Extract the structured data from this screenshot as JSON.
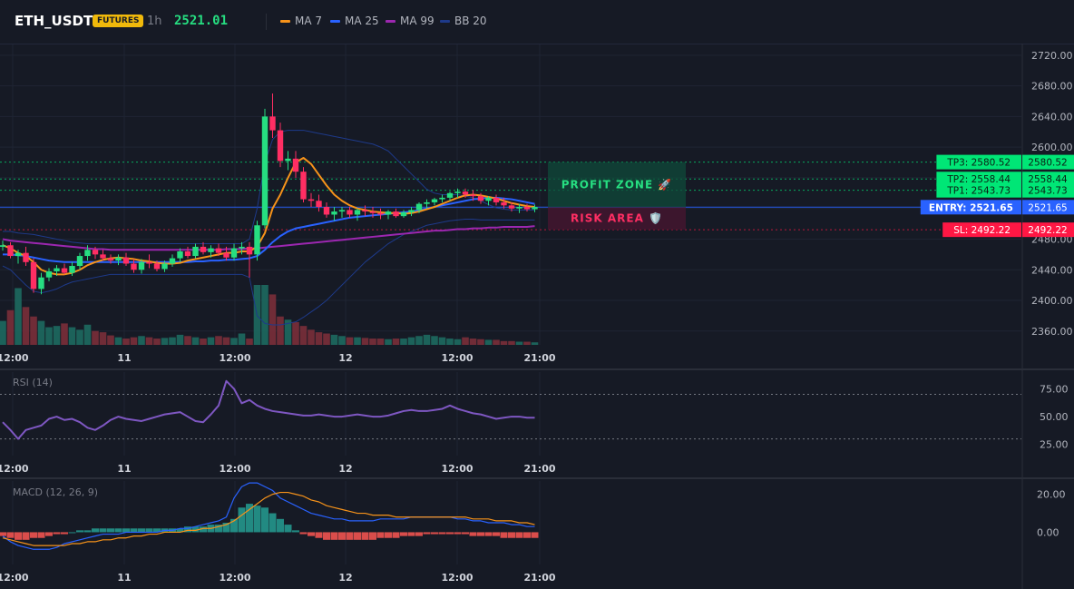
{
  "header": {
    "symbol": "ETH_USDT",
    "badge": "FUTURES",
    "timeframe": "1h",
    "price": "2521.01",
    "indicators": [
      {
        "label": "MA 7",
        "color": "#f7931a"
      },
      {
        "label": "MA 25",
        "color": "#2962ff"
      },
      {
        "label": "MA 99",
        "color": "#9c27b0"
      },
      {
        "label": "BB 20",
        "color": "#1e3a8a"
      }
    ]
  },
  "colors": {
    "up": "#26a69a",
    "down": "#ef5350",
    "up_candle": "#26de81",
    "down_candle": "#ff2e63",
    "tp": "#00e676",
    "entry": "#2962ff",
    "sl": "#ff1744"
  },
  "chart_data": [
    {
      "type": "candlestick",
      "x_ticks": [
        "12:00",
        "11",
        "12:00",
        "12",
        "12:00",
        "21:00"
      ],
      "y_ticks": [
        "2720.00",
        "2680.00",
        "2640.00",
        "2600.00",
        "2560.00",
        "2520.00",
        "2480.00",
        "2440.00",
        "2400.00",
        "2360.00"
      ],
      "ylim": [
        2342,
        2734
      ],
      "ohlc": [
        [
          2470,
          2478,
          2465,
          2472
        ],
        [
          2472,
          2476,
          2455,
          2458
        ],
        [
          2458,
          2466,
          2448,
          2462
        ],
        [
          2462,
          2470,
          2445,
          2450
        ],
        [
          2450,
          2455,
          2410,
          2415
        ],
        [
          2415,
          2436,
          2408,
          2430
        ],
        [
          2430,
          2442,
          2425,
          2438
        ],
        [
          2438,
          2446,
          2432,
          2442
        ],
        [
          2442,
          2448,
          2434,
          2436
        ],
        [
          2436,
          2450,
          2432,
          2445
        ],
        [
          2445,
          2462,
          2440,
          2458
        ],
        [
          2458,
          2472,
          2452,
          2466
        ],
        [
          2466,
          2470,
          2454,
          2460
        ],
        [
          2460,
          2466,
          2452,
          2455
        ],
        [
          2455,
          2460,
          2448,
          2452
        ],
        [
          2452,
          2460,
          2446,
          2456
        ],
        [
          2456,
          2462,
          2445,
          2448
        ],
        [
          2448,
          2454,
          2436,
          2440
        ],
        [
          2440,
          2454,
          2435,
          2450
        ],
        [
          2450,
          2460,
          2442,
          2448
        ],
        [
          2448,
          2452,
          2438,
          2441
        ],
        [
          2441,
          2452,
          2437,
          2448
        ],
        [
          2448,
          2460,
          2444,
          2455
        ],
        [
          2455,
          2468,
          2450,
          2464
        ],
        [
          2464,
          2470,
          2455,
          2458
        ],
        [
          2458,
          2474,
          2455,
          2470
        ],
        [
          2470,
          2476,
          2460,
          2463
        ],
        [
          2463,
          2472,
          2456,
          2468
        ],
        [
          2468,
          2474,
          2458,
          2462
        ],
        [
          2462,
          2470,
          2452,
          2456
        ],
        [
          2456,
          2474,
          2452,
          2468
        ],
        [
          2468,
          2476,
          2460,
          2470
        ],
        [
          2470,
          2476,
          2430,
          2460
        ],
        [
          2460,
          2504,
          2452,
          2498
        ],
        [
          2498,
          2650,
          2494,
          2640
        ],
        [
          2640,
          2670,
          2612,
          2622
        ],
        [
          2622,
          2632,
          2574,
          2582
        ],
        [
          2582,
          2595,
          2570,
          2585
        ],
        [
          2585,
          2595,
          2560,
          2568
        ],
        [
          2568,
          2574,
          2528,
          2532
        ],
        [
          2532,
          2540,
          2522,
          2530
        ],
        [
          2530,
          2538,
          2516,
          2522
        ],
        [
          2522,
          2528,
          2508,
          2512
        ],
        [
          2512,
          2522,
          2504,
          2516
        ],
        [
          2516,
          2522,
          2508,
          2518
        ],
        [
          2518,
          2522,
          2508,
          2512
        ],
        [
          2512,
          2520,
          2504,
          2518
        ],
        [
          2518,
          2524,
          2510,
          2516
        ],
        [
          2516,
          2522,
          2508,
          2514
        ],
        [
          2514,
          2520,
          2506,
          2512
        ],
        [
          2512,
          2518,
          2506,
          2516
        ],
        [
          2516,
          2520,
          2508,
          2510
        ],
        [
          2510,
          2518,
          2508,
          2515
        ],
        [
          2515,
          2522,
          2510,
          2518
        ],
        [
          2518,
          2528,
          2514,
          2526
        ],
        [
          2526,
          2532,
          2520,
          2528
        ],
        [
          2528,
          2534,
          2524,
          2532
        ],
        [
          2532,
          2538,
          2528,
          2534
        ],
        [
          2534,
          2542,
          2530,
          2540
        ],
        [
          2540,
          2546,
          2534,
          2542
        ],
        [
          2542,
          2546,
          2534,
          2538
        ],
        [
          2538,
          2544,
          2530,
          2536
        ],
        [
          2536,
          2540,
          2526,
          2530
        ],
        [
          2530,
          2536,
          2524,
          2534
        ],
        [
          2534,
          2538,
          2524,
          2528
        ],
        [
          2528,
          2534,
          2520,
          2524
        ],
        [
          2524,
          2528,
          2516,
          2520
        ],
        [
          2520,
          2526,
          2514,
          2522
        ],
        [
          2522,
          2526,
          2516,
          2519
        ],
        [
          2519,
          2525,
          2515,
          2522
        ]
      ],
      "volume": [
        38,
        55,
        90,
        60,
        45,
        38,
        28,
        30,
        34,
        28,
        24,
        32,
        22,
        20,
        15,
        12,
        10,
        12,
        14,
        12,
        10,
        11,
        12,
        16,
        14,
        12,
        10,
        12,
        14,
        12,
        11,
        18,
        10,
        95,
        95,
        80,
        45,
        40,
        36,
        30,
        24,
        20,
        18,
        16,
        14,
        12,
        12,
        11,
        10,
        10,
        9,
        10,
        10,
        12,
        14,
        16,
        14,
        12,
        10,
        9,
        12,
        10,
        9,
        8,
        8,
        6,
        6,
        5,
        5,
        4
      ],
      "ma7": [
        2472,
        2468,
        2462,
        2458,
        2450,
        2440,
        2436,
        2434,
        2434,
        2436,
        2440,
        2446,
        2450,
        2453,
        2455,
        2456,
        2455,
        2454,
        2452,
        2451,
        2449,
        2448,
        2448,
        2449,
        2452,
        2454,
        2456,
        2458,
        2460,
        2462,
        2462,
        2464,
        2464,
        2470,
        2488,
        2520,
        2538,
        2560,
        2580,
        2586,
        2578,
        2564,
        2550,
        2538,
        2530,
        2524,
        2520,
        2518,
        2516,
        2515,
        2514,
        2514,
        2513,
        2514,
        2516,
        2519,
        2522,
        2526,
        2530,
        2534,
        2537,
        2538,
        2537,
        2535,
        2533,
        2530,
        2527,
        2525,
        2523,
        2522
      ],
      "ma25": [
        2460,
        2460,
        2459,
        2458,
        2456,
        2454,
        2452,
        2451,
        2450,
        2450,
        2450,
        2450,
        2450,
        2450,
        2450,
        2450,
        2450,
        2450,
        2450,
        2450,
        2450,
        2450,
        2450,
        2450,
        2450,
        2451,
        2451,
        2452,
        2452,
        2453,
        2453,
        2454,
        2455,
        2458,
        2466,
        2476,
        2484,
        2490,
        2494,
        2496,
        2498,
        2500,
        2502,
        2504,
        2506,
        2508,
        2509,
        2510,
        2511,
        2512,
        2513,
        2514,
        2515,
        2516,
        2518,
        2520,
        2522,
        2524,
        2526,
        2528,
        2530,
        2532,
        2533,
        2534,
        2534,
        2533,
        2532,
        2530,
        2528,
        2526
      ],
      "ma99": [
        2480,
        2478,
        2477,
        2476,
        2475,
        2474,
        2473,
        2472,
        2471,
        2470,
        2469,
        2468,
        2467,
        2467,
        2466,
        2466,
        2466,
        2466,
        2466,
        2466,
        2466,
        2466,
        2466,
        2466,
        2466,
        2466,
        2466,
        2466,
        2466,
        2467,
        2467,
        2467,
        2468,
        2468,
        2469,
        2470,
        2471,
        2472,
        2473,
        2474,
        2475,
        2476,
        2477,
        2478,
        2479,
        2480,
        2481,
        2482,
        2483,
        2484,
        2485,
        2486,
        2487,
        2488,
        2489,
        2490,
        2491,
        2491,
        2492,
        2493,
        2493,
        2494,
        2494,
        2495,
        2495,
        2496,
        2496,
        2496,
        2496,
        2497
      ],
      "bb_upper": [
        2490,
        2490,
        2488,
        2487,
        2486,
        2484,
        2482,
        2480,
        2478,
        2476,
        2475,
        2474,
        2474,
        2474,
        2474,
        2474,
        2474,
        2474,
        2474,
        2474,
        2474,
        2474,
        2474,
        2474,
        2474,
        2474,
        2474,
        2474,
        2474,
        2474,
        2474,
        2474,
        2480,
        2520,
        2580,
        2610,
        2620,
        2622,
        2622,
        2622,
        2620,
        2618,
        2616,
        2614,
        2612,
        2610,
        2608,
        2606,
        2604,
        2600,
        2595,
        2585,
        2575,
        2565,
        2555,
        2545,
        2540,
        2538,
        2538,
        2538,
        2536,
        2534,
        2530,
        2525,
        2521,
        2519,
        2518,
        2518,
        2518,
        2518
      ],
      "bb_lower": [
        2445,
        2440,
        2430,
        2420,
        2412,
        2410,
        2412,
        2415,
        2420,
        2424,
        2426,
        2428,
        2430,
        2432,
        2434,
        2434,
        2434,
        2434,
        2434,
        2434,
        2434,
        2434,
        2434,
        2434,
        2434,
        2434,
        2434,
        2434,
        2434,
        2434,
        2434,
        2434,
        2430,
        2380,
        2370,
        2368,
        2368,
        2370,
        2372,
        2378,
        2385,
        2392,
        2400,
        2410,
        2420,
        2430,
        2440,
        2450,
        2458,
        2466,
        2474,
        2480,
        2486,
        2490,
        2494,
        2498,
        2500,
        2502,
        2504,
        2505,
        2506,
        2506,
        2505,
        2505,
        2505,
        2505,
        2505,
        2505,
        2505,
        2505
      ],
      "levels": [
        {
          "label": "TP3: 2580.52",
          "value": 2580.52,
          "tag": "2580.52"
        },
        {
          "label": "TP2: 2558.44",
          "value": 2558.44,
          "tag": "2558.44"
        },
        {
          "label": "TP1: 2543.73",
          "value": 2543.73,
          "tag": "2543.73"
        },
        {
          "label": "ENTRY: 2521.65",
          "value": 2521.65,
          "tag": "2521.65"
        },
        {
          "label": "SL: 2492.22",
          "value": 2492.22,
          "tag": "2492.22"
        }
      ],
      "zones": [
        {
          "label": "PROFIT ZONE 🚀",
          "from": 2521.65,
          "to": 2580.52
        },
        {
          "label": "RISK AREA 🛡️",
          "from": 2492.22,
          "to": 2521.65
        }
      ]
    },
    {
      "type": "line",
      "title": "RSI (14)",
      "x_ticks": [
        "12:00",
        "11",
        "12:00",
        "12",
        "12:00",
        "21:00"
      ],
      "y_ticks": [
        "75.00",
        "50.00",
        "25.00"
      ],
      "ylim": [
        15,
        90
      ],
      "guides": [
        70,
        30
      ],
      "values": [
        45,
        38,
        30,
        38,
        40,
        42,
        48,
        50,
        47,
        48,
        45,
        40,
        38,
        42,
        47,
        50,
        48,
        47,
        46,
        48,
        50,
        52,
        53,
        54,
        50,
        46,
        45,
        52,
        60,
        82,
        75,
        62,
        65,
        60,
        57,
        55,
        54,
        53,
        52,
        51,
        51,
        52,
        51,
        50,
        50,
        51,
        52,
        51,
        50,
        50,
        51,
        53,
        55,
        56,
        55,
        55,
        56,
        57,
        60,
        57,
        55,
        53,
        52,
        50,
        48,
        49,
        50,
        50,
        49,
        49
      ]
    },
    {
      "type": "bar",
      "title": "MACD (12, 26, 9)",
      "x_ticks": [
        "12:00",
        "11",
        "12:00",
        "12",
        "12:00",
        "21:00"
      ],
      "y_ticks": [
        "20.00",
        "0.00"
      ],
      "ylim": [
        -17,
        27
      ],
      "histogram": [
        -2,
        -3,
        -4,
        -4,
        -3,
        -3,
        -2,
        -1,
        -1,
        0,
        1,
        1,
        2,
        2,
        2,
        2,
        2,
        2,
        2,
        2,
        2,
        2,
        2,
        2,
        3,
        3,
        3,
        4,
        4,
        5,
        7,
        13,
        15,
        14,
        13,
        10,
        7,
        4,
        1,
        -1,
        -2,
        -3,
        -4,
        -4,
        -4,
        -4,
        -4,
        -4,
        -4,
        -3,
        -3,
        -3,
        -2,
        -2,
        -2,
        -1,
        -1,
        -1,
        -1,
        -1,
        -1,
        -2,
        -2,
        -2,
        -2,
        -3,
        -3,
        -3,
        -3,
        -3
      ],
      "macd_line": [
        -2,
        -5,
        -7,
        -8,
        -9,
        -9,
        -9,
        -8,
        -6,
        -5,
        -4,
        -3,
        -2,
        -1,
        -1,
        -1,
        0,
        0,
        0,
        0,
        0,
        1,
        1,
        2,
        2,
        3,
        4,
        5,
        6,
        8,
        18,
        24,
        26,
        26,
        24,
        22,
        18,
        16,
        14,
        12,
        10,
        9,
        8,
        7,
        7,
        6,
        6,
        6,
        6,
        7,
        7,
        7,
        7,
        8,
        8,
        8,
        8,
        8,
        8,
        7,
        7,
        6,
        6,
        5,
        5,
        5,
        4,
        4,
        3,
        3
      ],
      "signal_line": [
        -3,
        -4,
        -5,
        -6,
        -7,
        -7,
        -7,
        -7,
        -7,
        -6,
        -6,
        -5,
        -5,
        -4,
        -4,
        -3,
        -3,
        -2,
        -2,
        -1,
        -1,
        0,
        0,
        0,
        1,
        1,
        2,
        2,
        3,
        4,
        6,
        9,
        12,
        15,
        18,
        20,
        21,
        21,
        20,
        19,
        17,
        16,
        14,
        13,
        12,
        11,
        10,
        10,
        9,
        9,
        9,
        8,
        8,
        8,
        8,
        8,
        8,
        8,
        8,
        8,
        8,
        7,
        7,
        7,
        6,
        6,
        6,
        5,
        5,
        4
      ]
    }
  ]
}
